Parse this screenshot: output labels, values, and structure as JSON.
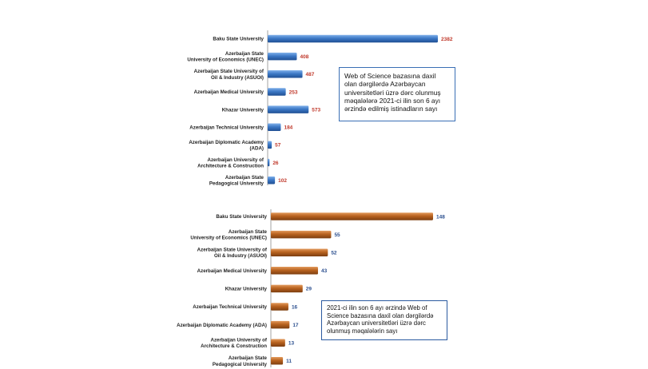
{
  "chart_data": [
    {
      "type": "bar",
      "orientation": "horizontal",
      "categories": [
        [
          "Baku State University"
        ],
        [
          "Azerbaijan State",
          "University of Economics (UNEC)"
        ],
        [
          "Azerbaijan State University of",
          "Oil & Industry (ASUOI)"
        ],
        [
          "Azerbaijan Medical University"
        ],
        [
          "Khazar University"
        ],
        [
          "Azerbaijan Technical University"
        ],
        [
          "Azerbaijan Diplomatic Academy",
          "(ADA)"
        ],
        [
          "Azerbaijan University of",
          "Architecture & Construction"
        ],
        [
          "Azerbaijan State",
          "Pedagogical University"
        ]
      ],
      "values": [
        2382,
        408,
        487,
        253,
        573,
        184,
        57,
        26,
        102
      ],
      "value_labels": [
        "2382",
        "408",
        "487",
        "253",
        "573",
        "184",
        "57",
        "26",
        "102"
      ],
      "xlim": [
        0,
        2382
      ],
      "bar_color": "#3d79c6",
      "value_label_color": "#c0392b",
      "annotation": "Web of Science bazasına daxil olan dərgilərdə Azərbaycan universitetləri üzrə dərc olunmuş məqalələrə 2021-ci ilin son 6 ayı ərzində edilmiş istinadların sayı"
    },
    {
      "type": "bar",
      "orientation": "horizontal",
      "categories": [
        [
          "Baku State University"
        ],
        [
          "Azerbaijan State",
          "University of Economics (UNEC)"
        ],
        [
          "Azerbaijan State University of",
          "Oil & Industry (ASUOI)"
        ],
        [
          "Azerbaijan Medical University"
        ],
        [
          "Khazar University"
        ],
        [
          "Azerbaijan Technical University"
        ],
        [
          "Azerbaijan Diplomatic Academy (ADA)"
        ],
        [
          "Azerbaijan University of",
          "Architecture & Construction"
        ],
        [
          "Azerbaijan State",
          "Pedagogical University"
        ]
      ],
      "values": [
        148,
        55,
        52,
        43,
        29,
        16,
        17,
        13,
        11
      ],
      "value_labels": [
        "148",
        "55",
        "52",
        "43",
        "29",
        "16",
        "17",
        "13",
        "11"
      ],
      "xlim": [
        0,
        148
      ],
      "bar_color": "#b8621f",
      "value_label_color": "#2b4f8f",
      "annotation": "2021-ci ilin son 6 ayı ərzində Web of Science bazasına daxil olan dərgilərdə Azərbaycan universitetləri üzrə dərc olunmuş məqalələrin sayı"
    }
  ]
}
